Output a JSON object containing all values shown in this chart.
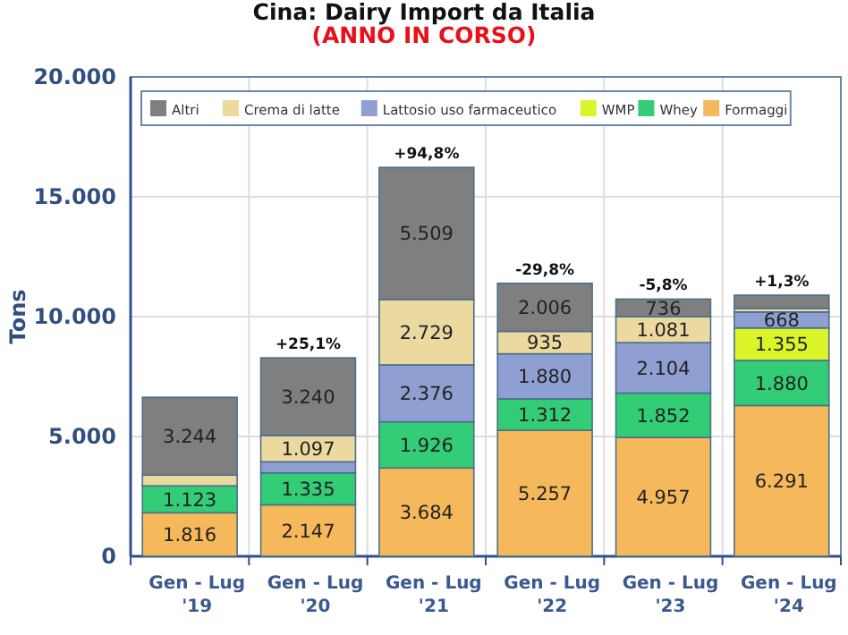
{
  "chart_data": {
    "type": "bar",
    "title": "Cina: Dairy Import da Italia",
    "subtitle": "(ANNO IN CORSO)",
    "ylabel": "Tons",
    "stacked": true,
    "grid": true,
    "legend": "top",
    "categories": [
      "Gen - Lug '19",
      "Gen - Lug '20",
      "Gen - Lug '21",
      "Gen - Lug '22",
      "Gen - Lug '23",
      "Gen - Lug '24"
    ],
    "series": [
      {
        "name": "Formaggi",
        "color": "#f5b85a",
        "values": [
          1816,
          2147,
          3684,
          5257,
          4957,
          6291
        ],
        "value_labels": [
          "1.816",
          "2.147",
          "3.684",
          "5.257",
          "4.957",
          "6.291"
        ]
      },
      {
        "name": "Whey",
        "color": "#33cc77",
        "values": [
          1123,
          1335,
          1926,
          1312,
          1852,
          1880
        ],
        "value_labels": [
          "1.123",
          "1.335",
          "1.926",
          "1.312",
          "1.852",
          "1.880"
        ]
      },
      {
        "name": "WMP",
        "color": "#dcf52a",
        "values": [
          0,
          0,
          0,
          0,
          0,
          1355
        ],
        "value_labels": [
          null,
          null,
          null,
          null,
          null,
          "1.355"
        ]
      },
      {
        "name": "Lattosio uso farmaceutico",
        "color": "#8f9fd1",
        "values": [
          0,
          460,
          2376,
          1880,
          2104,
          668
        ],
        "value_labels": [
          null,
          null,
          "2.376",
          "1.880",
          "2.104",
          "668"
        ]
      },
      {
        "name": "Crema di latte",
        "color": "#ecd9a0",
        "values": [
          450,
          1097,
          2729,
          935,
          1081,
          150
        ],
        "value_labels": [
          null,
          "1.097",
          "2.729",
          "935",
          "1.081",
          null
        ]
      },
      {
        "name": "Altri",
        "color": "#7f7f7f",
        "values": [
          3244,
          3240,
          5509,
          2006,
          736,
          550
        ],
        "value_labels": [
          "3.244",
          "3.240",
          "5.509",
          "2.006",
          "736",
          null
        ]
      }
    ],
    "annotations": [
      {
        "text": "+25,1%",
        "x": "Gen - Lug '20",
        "y": 8279
      },
      {
        "text": "+94,8%",
        "x": "Gen - Lug '21",
        "y": 16224
      },
      {
        "text": "-29,8%",
        "x": "Gen - Lug '22",
        "y": 11390
      },
      {
        "text": "-5,8%",
        "x": "Gen - Lug '23",
        "y": 10730
      },
      {
        "text": "+1,3%",
        "x": "Gen - Lug '24",
        "y": 10894
      }
    ],
    "ylim": [
      0,
      20000
    ],
    "yticks": [
      0,
      {
        "value": 5000,
        "label": "5.000"
      },
      {
        "value": 10000,
        "label": "10.000"
      },
      {
        "value": 15000,
        "label": "15.000"
      },
      {
        "value": 20000,
        "label": "20.000"
      }
    ]
  }
}
